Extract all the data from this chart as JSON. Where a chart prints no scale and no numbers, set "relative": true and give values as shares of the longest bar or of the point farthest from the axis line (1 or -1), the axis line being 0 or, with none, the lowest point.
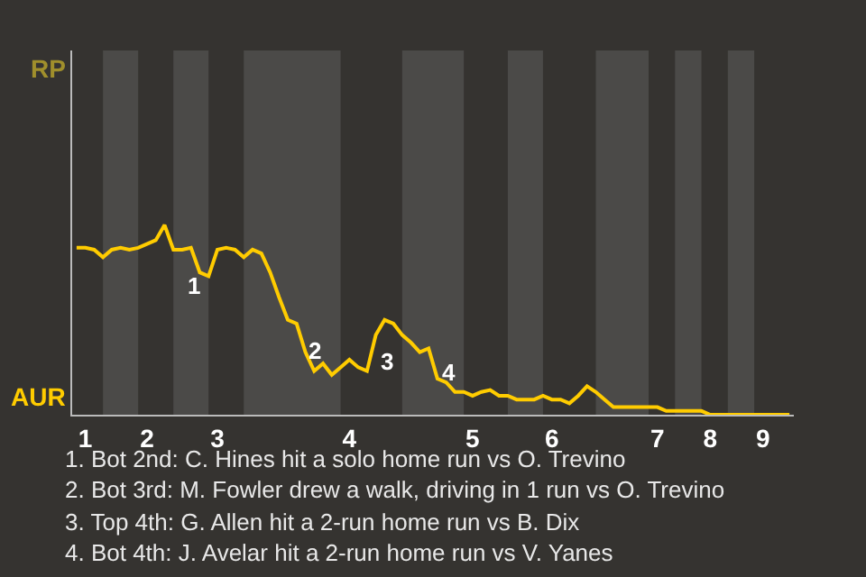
{
  "chart_data": {
    "type": "line",
    "relative": true,
    "categories": [
      null,
      "1",
      null,
      null,
      null,
      null,
      null,
      null,
      "2",
      null,
      null,
      null,
      null,
      null,
      null,
      null,
      "3",
      null,
      null,
      null,
      null,
      null,
      null,
      null,
      null,
      null,
      null,
      null,
      null,
      null,
      null,
      "4",
      null,
      null,
      null,
      null,
      null,
      null,
      null,
      null,
      null,
      null,
      null,
      null,
      null,
      "5",
      null,
      null,
      null,
      null,
      null,
      null,
      null,
      null,
      "6",
      null,
      null,
      null,
      null,
      null,
      null,
      null,
      null,
      null,
      null,
      null,
      "7",
      null,
      null,
      null,
      null,
      null,
      "8",
      null,
      null,
      null,
      null,
      null,
      "9",
      null,
      null,
      null
    ],
    "line_style": "solid",
    "marker": "none",
    "series": [
      {
        "color": "#ffcc00",
        "values": [
          0.88,
          0.88,
          0.87,
          0.83,
          0.87,
          0.88,
          0.87,
          0.88,
          0.9,
          0.92,
          1,
          0.87,
          0.87,
          0.88,
          0.75,
          0.73,
          0.87,
          0.88,
          0.87,
          0.83,
          0.87,
          0.85,
          0.75,
          0.62,
          0.5,
          0.48,
          0.33,
          0.23,
          0.27,
          0.21,
          0.25,
          0.29,
          0.25,
          0.23,
          0.42,
          0.5,
          0.48,
          0.42,
          0.38,
          0.33,
          0.35,
          0.19,
          0.17,
          0.12,
          0.12,
          0.1,
          0.12,
          0.13,
          0.1,
          0.1,
          0.08,
          0.08,
          0.08,
          0.1,
          0.08,
          0.08,
          0.06,
          0.1,
          0.15,
          0.12,
          0.08,
          0.04,
          0.04,
          0.04,
          0.04,
          0.04,
          0.04,
          0.02,
          0.02,
          0.02,
          0.02,
          0.02,
          0,
          0,
          0,
          0,
          0,
          0,
          0,
          0,
          0,
          0
        ]
      }
    ],
    "annotations": [
      "RP",
      "AUR",
      "1",
      "2",
      "3",
      "4",
      "1. Bot 2nd: C. Hines hit a solo home run vs O. Trevino",
      "2. Bot 3rd: M. Fowler drew a walk, driving in 1 run vs O. Trevino",
      "3. Top 4th: G. Allen hit a 2-run home run vs B. Dix",
      "4. Bot 4th: J. Avelar hit a 2-run home run vs V. Yanes"
    ]
  }
}
